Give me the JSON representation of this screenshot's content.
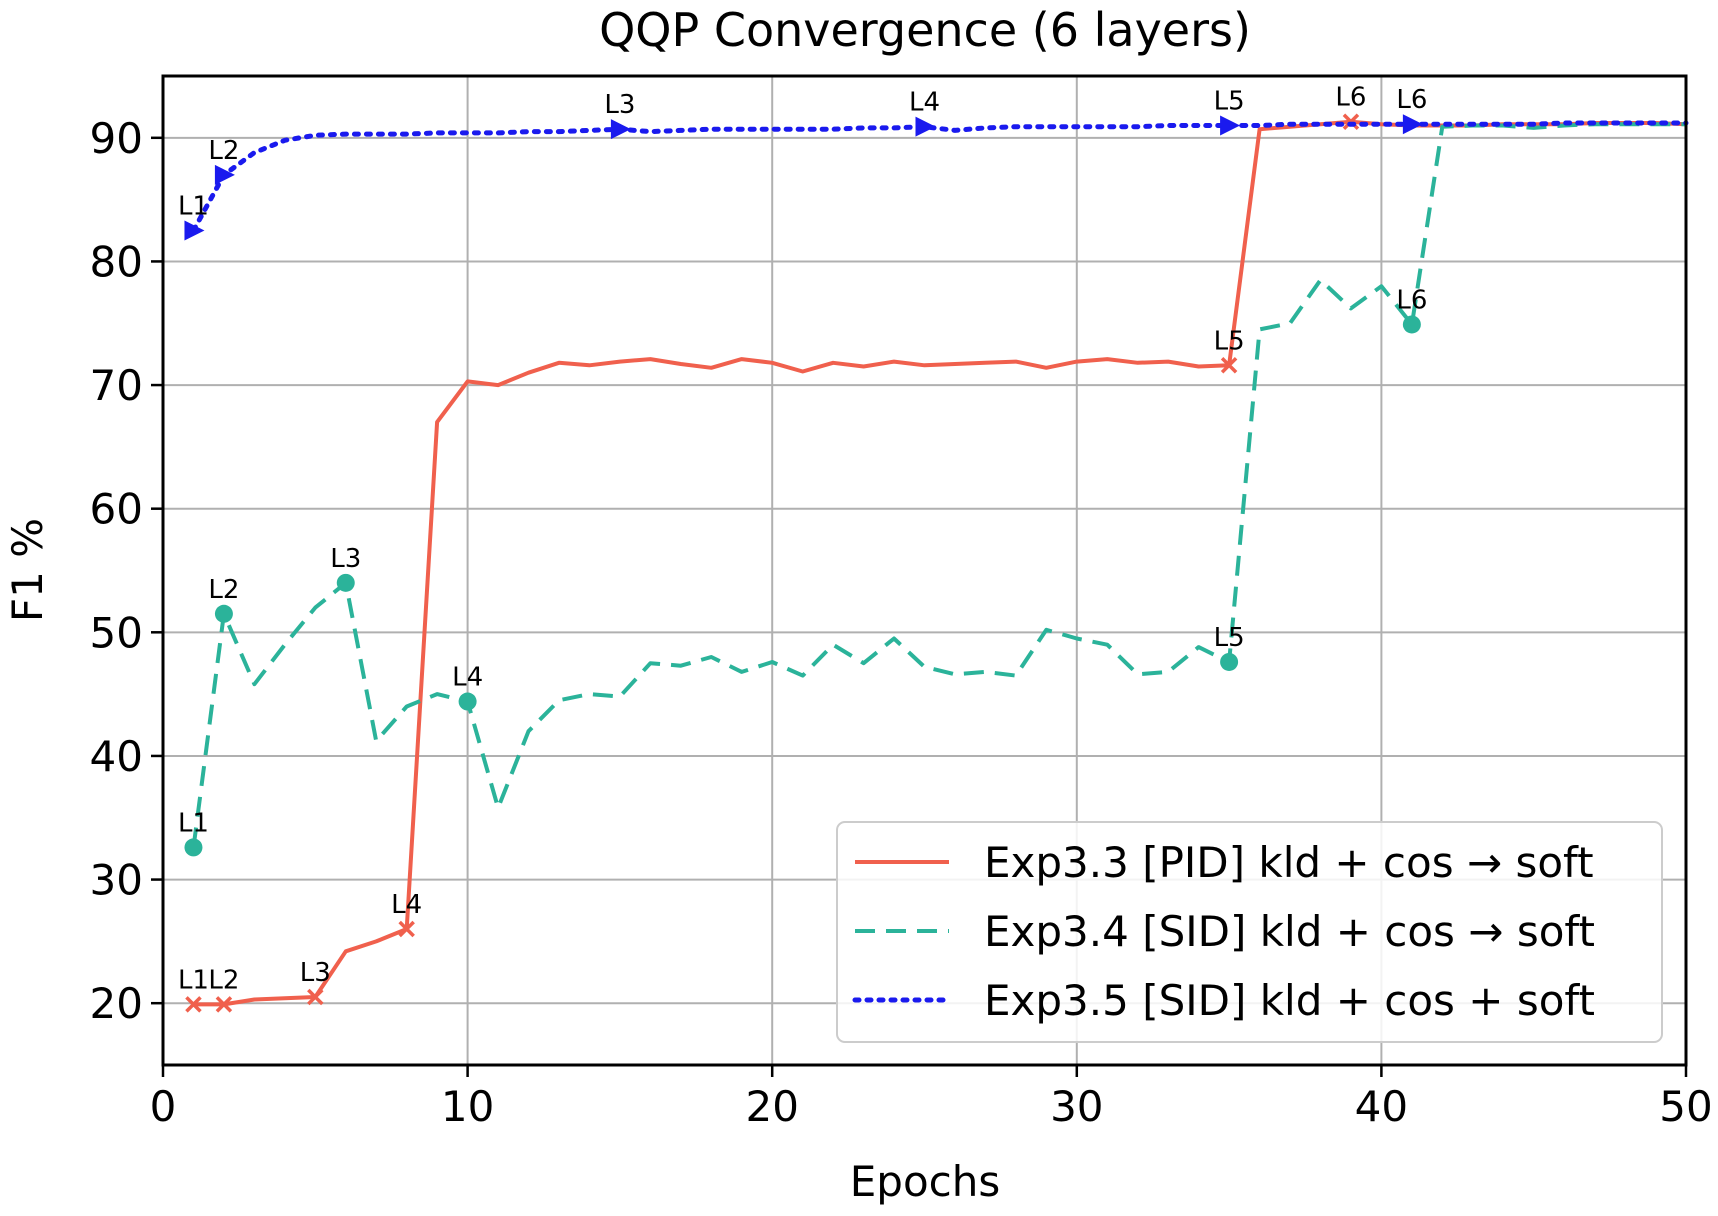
{
  "chart_data": {
    "type": "line",
    "title": "QQP Convergence (6 layers)",
    "xlabel": "Epochs",
    "ylabel": "F1 %",
    "xlim": [
      0,
      50
    ],
    "ylim": [
      15,
      95
    ],
    "xticks": [
      0,
      10,
      20,
      30,
      40,
      50
    ],
    "yticks": [
      20,
      30,
      40,
      50,
      60,
      70,
      80,
      90
    ],
    "grid": true,
    "legend_position": "lower-right",
    "series": [
      {
        "name": "Exp3.3 [PID] kld + cos → soft",
        "color": "#f0604d",
        "style": "solid",
        "marker": "x",
        "points": [
          [
            1,
            19.9
          ],
          [
            2,
            19.9
          ],
          [
            3,
            20.3
          ],
          [
            4,
            20.4
          ],
          [
            5,
            20.5
          ],
          [
            6,
            24.2
          ],
          [
            7,
            25
          ],
          [
            8,
            26
          ],
          [
            9,
            67
          ],
          [
            10,
            70.3
          ],
          [
            11,
            70
          ],
          [
            12,
            71
          ],
          [
            13,
            71.8
          ],
          [
            14,
            71.6
          ],
          [
            15,
            71.9
          ],
          [
            16,
            72.1
          ],
          [
            17,
            71.7
          ],
          [
            18,
            71.4
          ],
          [
            19,
            72.1
          ],
          [
            20,
            71.8
          ],
          [
            21,
            71.1
          ],
          [
            22,
            71.8
          ],
          [
            23,
            71.5
          ],
          [
            24,
            71.9
          ],
          [
            25,
            71.6
          ],
          [
            26,
            71.7
          ],
          [
            27,
            71.8
          ],
          [
            28,
            71.9
          ],
          [
            29,
            71.4
          ],
          [
            30,
            71.9
          ],
          [
            31,
            72.1
          ],
          [
            32,
            71.8
          ],
          [
            33,
            71.9
          ],
          [
            34,
            71.5
          ],
          [
            35,
            71.6
          ],
          [
            36,
            90.7
          ],
          [
            37,
            90.9
          ],
          [
            38,
            91.1
          ],
          [
            39,
            91.3
          ],
          [
            40,
            91.1
          ],
          [
            41,
            91
          ],
          [
            42,
            91
          ],
          [
            43,
            91
          ],
          [
            44,
            91.1
          ],
          [
            45,
            91.1
          ],
          [
            46,
            91.1
          ],
          [
            47,
            91.2
          ],
          [
            48,
            91.2
          ],
          [
            49,
            91.2
          ],
          [
            50,
            91.1
          ]
        ],
        "layer_markers": [
          {
            "label": "L1",
            "x": 1,
            "y": 19.9
          },
          {
            "label": "L2",
            "x": 2,
            "y": 19.9
          },
          {
            "label": "L3",
            "x": 5,
            "y": 20.5
          },
          {
            "label": "L4",
            "x": 8,
            "y": 26
          },
          {
            "label": "L5",
            "x": 35,
            "y": 71.6
          },
          {
            "label": "L6",
            "x": 39,
            "y": 91.3
          }
        ]
      },
      {
        "name": "Exp3.4 [SID] kld + cos → soft",
        "color": "#2bb39a",
        "style": "dashed",
        "marker": "o",
        "points": [
          [
            1,
            32.6
          ],
          [
            2,
            51.5
          ],
          [
            3,
            45.8
          ],
          [
            4,
            49
          ],
          [
            5,
            52
          ],
          [
            6,
            54
          ],
          [
            7,
            41.2
          ],
          [
            8,
            44
          ],
          [
            9,
            45
          ],
          [
            10,
            44.4
          ],
          [
            11,
            35.8
          ],
          [
            12,
            42
          ],
          [
            13,
            44.5
          ],
          [
            14,
            45
          ],
          [
            15,
            44.8
          ],
          [
            16,
            47.5
          ],
          [
            17,
            47.3
          ],
          [
            18,
            48
          ],
          [
            19,
            46.8
          ],
          [
            20,
            47.6
          ],
          [
            21,
            46.5
          ],
          [
            22,
            49
          ],
          [
            23,
            47.5
          ],
          [
            24,
            49.5
          ],
          [
            25,
            47.2
          ],
          [
            26,
            46.6
          ],
          [
            27,
            46.8
          ],
          [
            28,
            46.5
          ],
          [
            29,
            50.2
          ],
          [
            30,
            49.5
          ],
          [
            31,
            49
          ],
          [
            32,
            46.6
          ],
          [
            33,
            46.8
          ],
          [
            34,
            48.8
          ],
          [
            35,
            47.6
          ],
          [
            36,
            74.5
          ],
          [
            37,
            75
          ],
          [
            38,
            78.5
          ],
          [
            39,
            76.2
          ],
          [
            40,
            78
          ],
          [
            41,
            74.9
          ],
          [
            42,
            90.9
          ],
          [
            43,
            91
          ],
          [
            44,
            91
          ],
          [
            45,
            90.8
          ],
          [
            46,
            91
          ],
          [
            47,
            91.1
          ],
          [
            48,
            91.1
          ],
          [
            49,
            91.1
          ],
          [
            50,
            91.1
          ]
        ],
        "layer_markers": [
          {
            "label": "L1",
            "x": 1,
            "y": 32.6
          },
          {
            "label": "L2",
            "x": 2,
            "y": 51.5
          },
          {
            "label": "L3",
            "x": 6,
            "y": 54
          },
          {
            "label": "L4",
            "x": 10,
            "y": 44.4
          },
          {
            "label": "L5",
            "x": 35,
            "y": 47.6
          },
          {
            "label": "L6",
            "x": 41,
            "y": 74.9
          }
        ]
      },
      {
        "name": "Exp3.5 [SID] kld + cos + soft",
        "color": "#1a1aee",
        "style": "dotted",
        "marker": "triangle-right",
        "points": [
          [
            1,
            82.5
          ],
          [
            2,
            87
          ],
          [
            3,
            88.8
          ],
          [
            4,
            89.8
          ],
          [
            5,
            90.2
          ],
          [
            6,
            90.3
          ],
          [
            7,
            90.3
          ],
          [
            8,
            90.3
          ],
          [
            9,
            90.4
          ],
          [
            10,
            90.4
          ],
          [
            11,
            90.4
          ],
          [
            12,
            90.5
          ],
          [
            13,
            90.5
          ],
          [
            14,
            90.6
          ],
          [
            15,
            90.7
          ],
          [
            16,
            90.5
          ],
          [
            17,
            90.6
          ],
          [
            18,
            90.7
          ],
          [
            19,
            90.7
          ],
          [
            20,
            90.7
          ],
          [
            21,
            90.7
          ],
          [
            22,
            90.7
          ],
          [
            23,
            90.8
          ],
          [
            24,
            90.8
          ],
          [
            25,
            90.9
          ],
          [
            26,
            90.6
          ],
          [
            27,
            90.8
          ],
          [
            28,
            90.9
          ],
          [
            29,
            90.9
          ],
          [
            30,
            90.9
          ],
          [
            31,
            90.9
          ],
          [
            32,
            90.9
          ],
          [
            33,
            91
          ],
          [
            34,
            91
          ],
          [
            35,
            91
          ],
          [
            36,
            91
          ],
          [
            37,
            91.1
          ],
          [
            38,
            91.1
          ],
          [
            39,
            91.1
          ],
          [
            40,
            91.1
          ],
          [
            41,
            91.1
          ],
          [
            42,
            91.1
          ],
          [
            43,
            91.1
          ],
          [
            44,
            91.1
          ],
          [
            45,
            91.1
          ],
          [
            46,
            91.2
          ],
          [
            47,
            91.2
          ],
          [
            48,
            91.2
          ],
          [
            49,
            91.2
          ],
          [
            50,
            91.2
          ]
        ],
        "layer_markers": [
          {
            "label": "L1",
            "x": 1,
            "y": 82.5
          },
          {
            "label": "L2",
            "x": 2,
            "y": 87
          },
          {
            "label": "L3",
            "x": 15,
            "y": 90.7
          },
          {
            "label": "L4",
            "x": 25,
            "y": 90.9
          },
          {
            "label": "L5",
            "x": 35,
            "y": 91
          },
          {
            "label": "L6",
            "x": 41,
            "y": 91.1
          }
        ]
      }
    ]
  }
}
